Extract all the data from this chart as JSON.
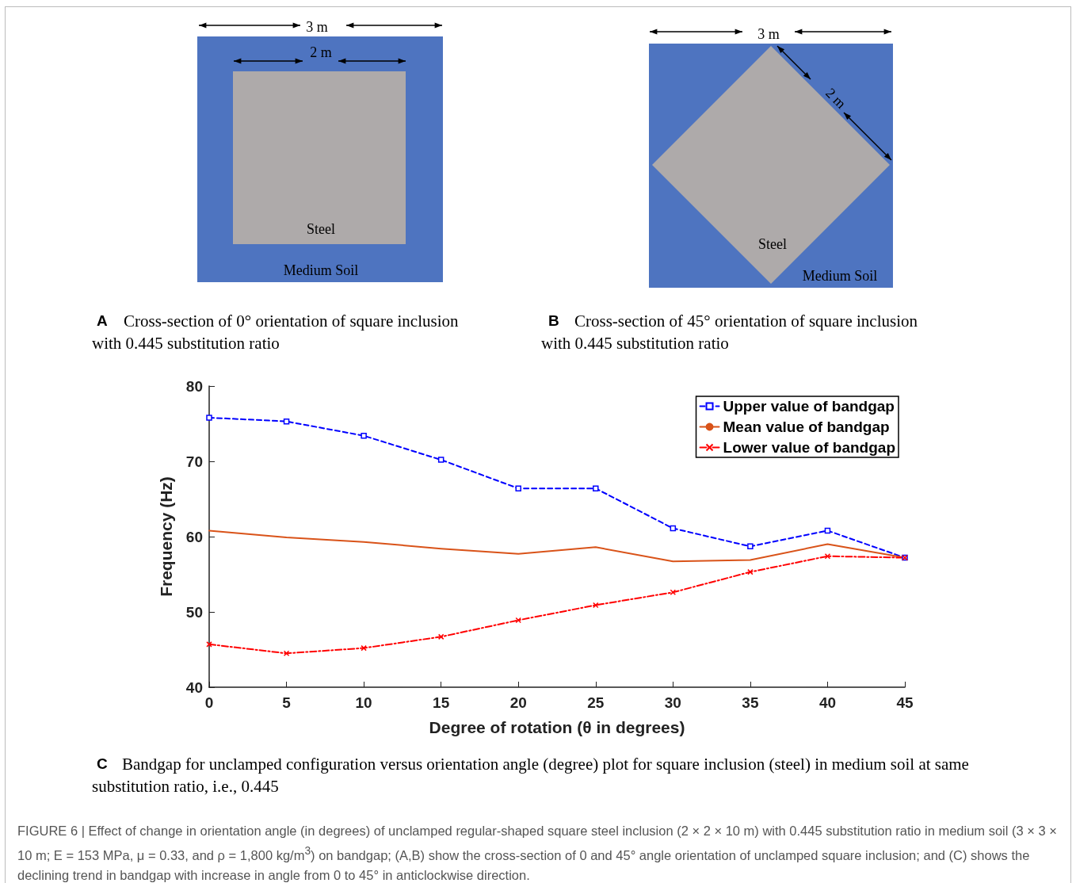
{
  "chart_data": {
    "type": "line",
    "xlabel": "Degree of rotation (θ in degrees)",
    "ylabel": "Frequency (Hz)",
    "x": [
      0,
      5,
      10,
      15,
      20,
      25,
      30,
      35,
      40,
      45
    ],
    "xlim": [
      0,
      45
    ],
    "xticks": [
      0,
      5,
      10,
      15,
      20,
      25,
      30,
      35,
      40,
      45
    ],
    "ylim": [
      40,
      80
    ],
    "yticks": [
      40,
      50,
      60,
      70,
      80
    ],
    "grid": false,
    "legend": "top right",
    "series": [
      {
        "name": "Upper value of bandgap",
        "color": "#0000ff",
        "marker": "square",
        "line_style": "dashed",
        "values": [
          75.8,
          75.3,
          73.4,
          70.2,
          66.4,
          66.4,
          61.1,
          58.7,
          60.8,
          57.2
        ]
      },
      {
        "name": "Mean value of bandgap",
        "color": "#d95319",
        "marker": "none",
        "line_style": "solid",
        "values": [
          60.8,
          59.9,
          59.3,
          58.4,
          57.7,
          58.6,
          56.7,
          56.9,
          59.0,
          57.2
        ]
      },
      {
        "name": "Lower value of bandgap",
        "color": "#ff0000",
        "marker": "cross",
        "line_style": "dotted",
        "values": [
          45.7,
          44.5,
          45.2,
          46.7,
          48.9,
          50.9,
          52.6,
          55.3,
          57.4,
          57.2
        ]
      }
    ],
    "annotations": [
      "3 m",
      "2 m",
      "Steel",
      "Medium Soil",
      "A",
      "Cross-section of 0° orientation of square inclusion with 0.445 substitution ratio",
      "3 m",
      "2 m",
      "Steel",
      "Medium Soil",
      "B",
      "Cross-section of 45° orientation of square inclusion with 0.445 substitution ratio",
      "C",
      "Bandgap for unclamped configuration versus orientation angle (degree) plot for square inclusion (steel) in medium soil at same substitution ratio, i.e., 0.445",
      "FIGURE 6 | Effect of change in orientation angle (in degrees) of unclamped regular-shaped square steel inclusion (2 × 2 × 10 m) with 0.445 substitution ratio in medium soil (3 × 3 × 10 m; E = 153 MPa, μ = 0.33, and ρ = 1,800 kg/m$^{3}$) on bandgap; (A,B) show the cross-section of 0 and 45° angle orientation of unclamped square inclusion; and (C) shows the declining trend in bandgap with increase in angle from 0 to 45° in anticlockwise direction."
    ]
  }
}
